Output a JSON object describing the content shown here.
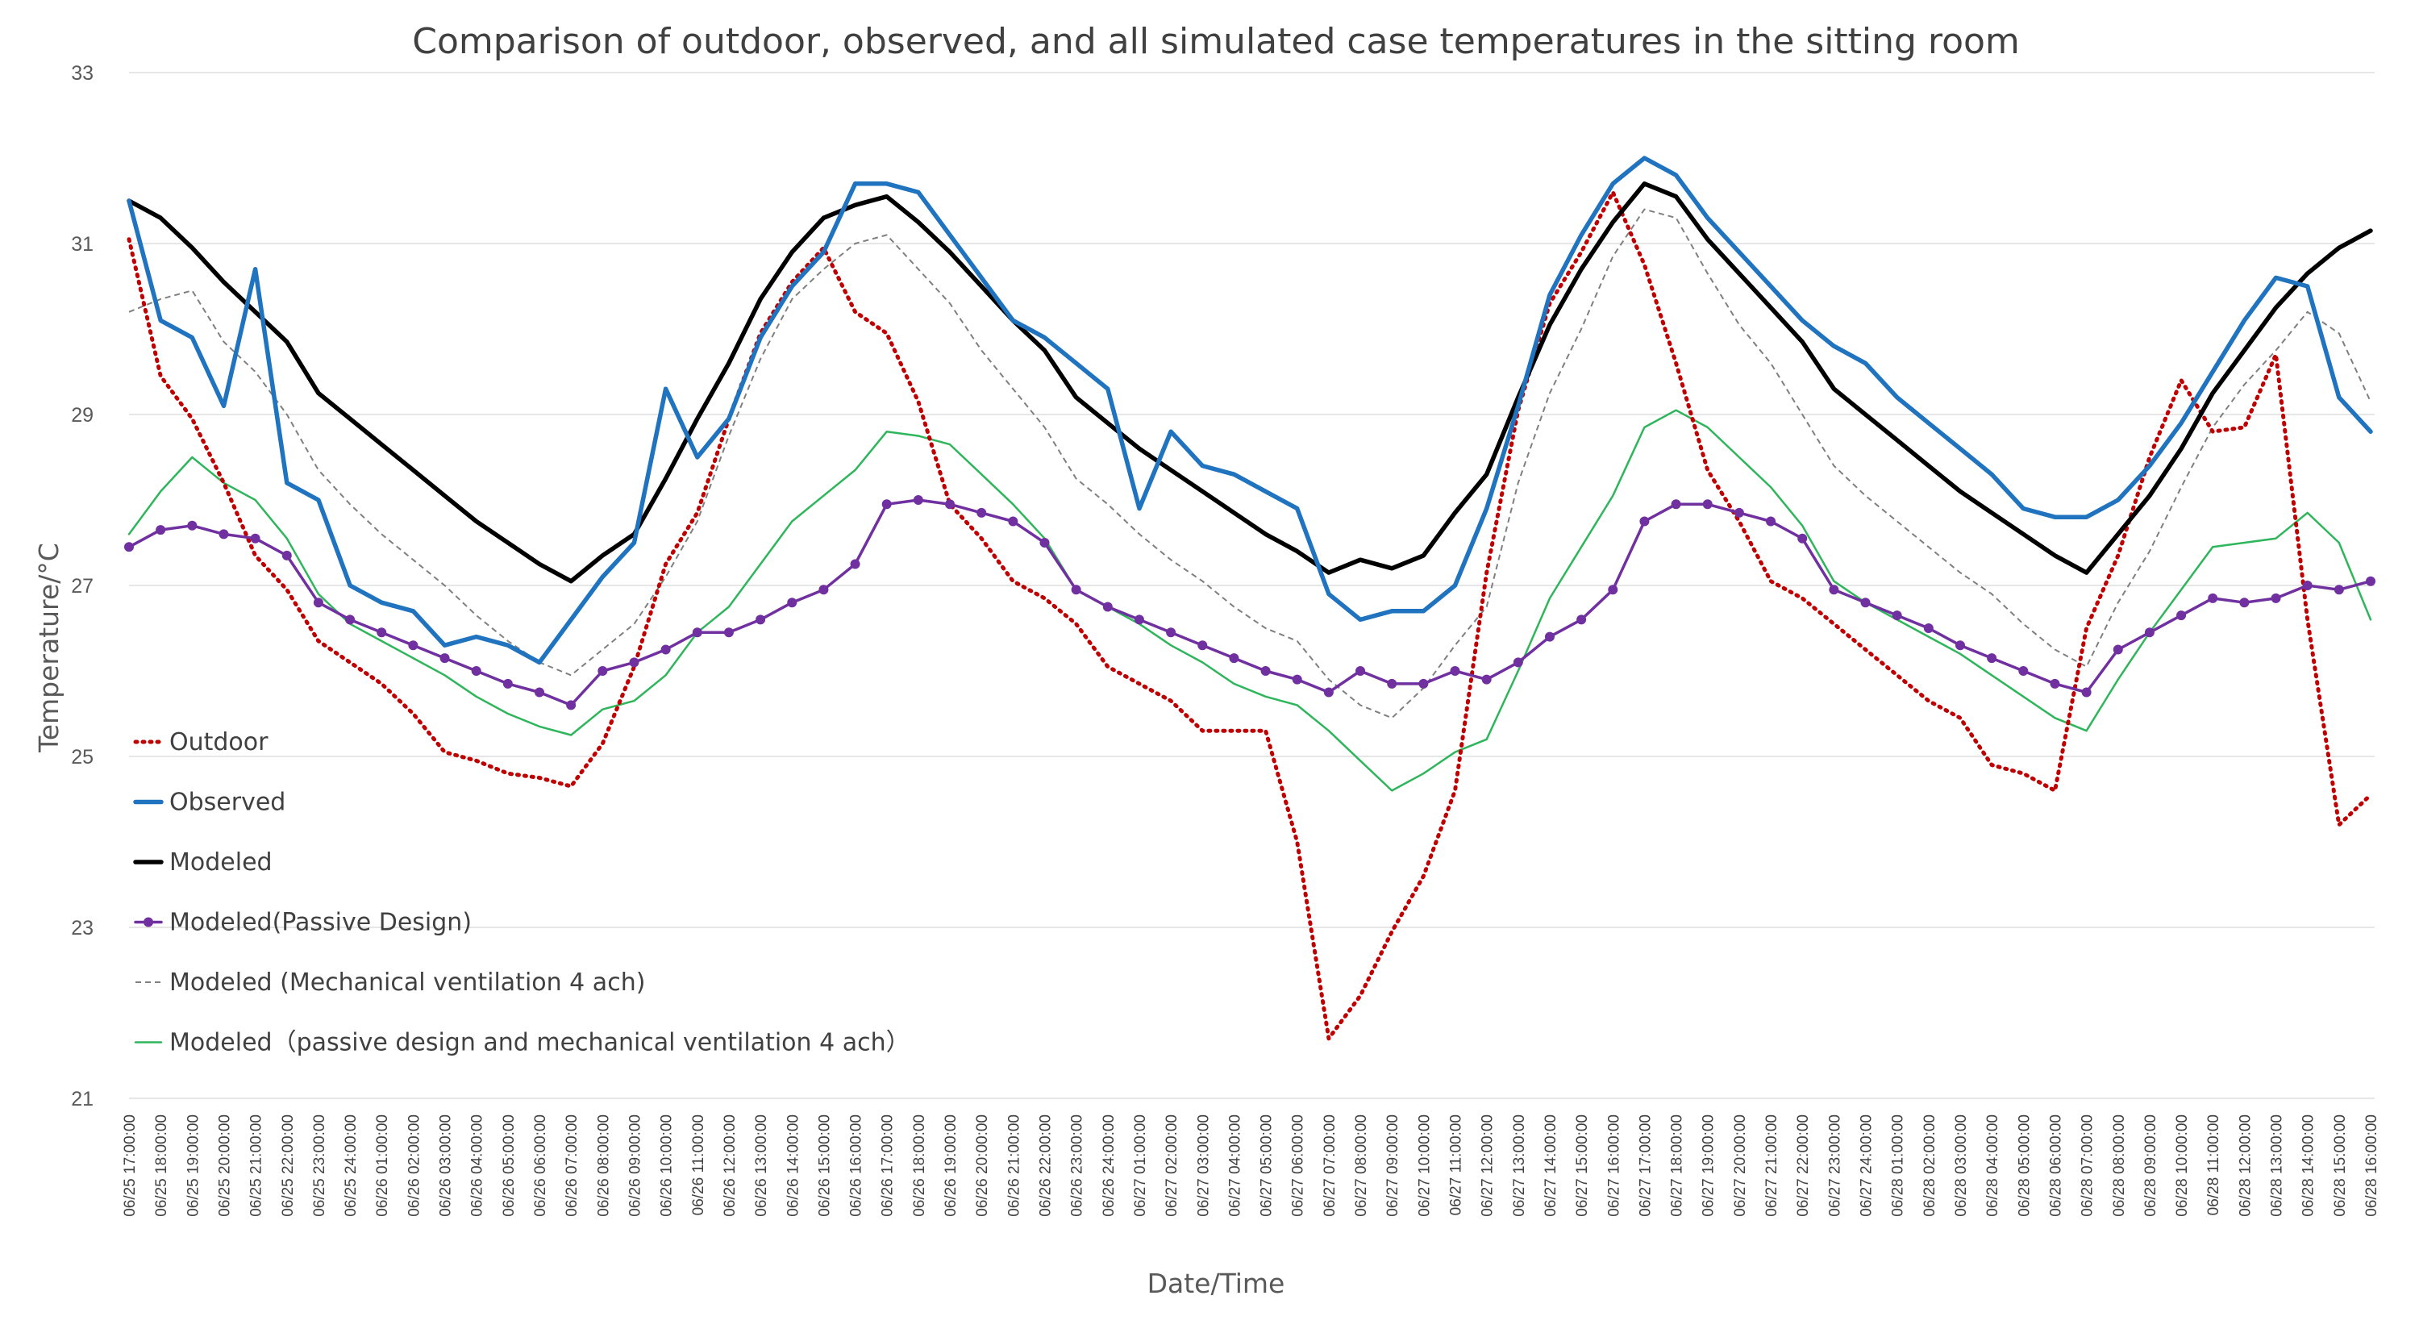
{
  "chart_data": {
    "type": "line",
    "title": "Comparison of outdoor, observed, and all simulated case temperatures in the sitting  room",
    "xlabel": "Date/Time",
    "ylabel": "Temperature/°C",
    "ylim": [
      21,
      33
    ],
    "yticks": [
      21,
      23,
      25,
      27,
      29,
      31,
      33
    ],
    "grid": true,
    "legend_position": "left-bottom",
    "x": [
      "06/25 17:00:00",
      "06/25 18:00:00",
      "06/25 19:00:00",
      "06/25 20:00:00",
      "06/25 21:00:00",
      "06/25 22:00:00",
      "06/25 23:00:00",
      "06/25 24:00:00",
      "06/26 01:00:00",
      "06/26 02:00:00",
      "06/26 03:00:00",
      "06/26 04:00:00",
      "06/26 05:00:00",
      "06/26 06:00:00",
      "06/26 07:00:00",
      "06/26 08:00:00",
      "06/26 09:00:00",
      "06/26 10:00:00",
      "06/26 11:00:00",
      "06/26 12:00:00",
      "06/26 13:00:00",
      "06/26 14:00:00",
      "06/26 15:00:00",
      "06/26 16:00:00",
      "06/26 17:00:00",
      "06/26 18:00:00",
      "06/26 19:00:00",
      "06/26 20:00:00",
      "06/26 21:00:00",
      "06/26 22:00:00",
      "06/26 23:00:00",
      "06/26 24:00:00",
      "06/27 01:00:00",
      "06/27 02:00:00",
      "06/27 03:00:00",
      "06/27 04:00:00",
      "06/27 05:00:00",
      "06/27 06:00:00",
      "06/27 07:00:00",
      "06/27 08:00:00",
      "06/27 09:00:00",
      "06/27 10:00:00",
      "06/27 11:00:00",
      "06/27 12:00:00",
      "06/27 13:00:00",
      "06/27 14:00:00",
      "06/27 15:00:00",
      "06/27 16:00:00",
      "06/27 17:00:00",
      "06/27 18:00:00",
      "06/27 19:00:00",
      "06/27 20:00:00",
      "06/27 21:00:00",
      "06/27 22:00:00",
      "06/27 23:00:00",
      "06/27 24:00:00",
      "06/28 01:00:00",
      "06/28 02:00:00",
      "06/28 03:00:00",
      "06/28 04:00:00",
      "06/28 05:00:00",
      "06/28 06:00:00",
      "06/28 07:00:00",
      "06/28 08:00:00",
      "06/28 09:00:00",
      "06/28 10:00:00",
      "06/28 11:00:00",
      "06/28 12:00:00",
      "06/28 13:00:00",
      "06/28 14:00:00",
      "06/28 15:00:00",
      "06/28 16:00:00"
    ],
    "series": [
      {
        "name": "Outdoor",
        "color": "#c00000",
        "style": "dotted",
        "values": [
          31.05,
          29.45,
          28.95,
          28.2,
          27.35,
          26.95,
          26.35,
          26.1,
          25.85,
          25.5,
          25.05,
          24.95,
          24.8,
          24.75,
          24.65,
          25.15,
          26.05,
          27.25,
          27.85,
          28.95,
          29.95,
          30.55,
          30.95,
          30.2,
          29.95,
          29.15,
          27.95,
          27.55,
          27.05,
          26.85,
          26.55,
          26.05,
          25.85,
          25.65,
          25.3,
          25.3,
          25.3,
          24.0,
          21.7,
          22.2,
          22.95,
          23.6,
          24.6,
          27.15,
          29.05,
          30.3,
          30.9,
          31.6,
          30.75,
          29.6,
          28.35,
          27.75,
          27.05,
          26.85,
          26.55,
          26.25,
          25.95,
          25.65,
          25.45,
          24.9,
          24.8,
          24.6,
          26.5,
          27.35,
          28.5,
          29.4,
          28.8,
          28.85,
          29.7,
          26.6,
          24.2,
          24.55
        ]
      },
      {
        "name": "Observed",
        "color": "#1f73bf",
        "style": "solid-thick",
        "values": [
          31.5,
          30.1,
          29.9,
          29.1,
          30.7,
          28.2,
          28.0,
          27.0,
          26.8,
          26.7,
          26.3,
          26.4,
          26.3,
          26.1,
          26.6,
          27.1,
          27.5,
          29.3,
          28.5,
          28.95,
          29.9,
          30.5,
          30.9,
          31.7,
          31.7,
          31.6,
          31.1,
          30.6,
          30.1,
          29.9,
          29.6,
          29.3,
          27.9,
          28.8,
          28.4,
          28.3,
          28.1,
          27.9,
          26.9,
          26.6,
          26.7,
          26.7,
          27.0,
          27.9,
          29.1,
          30.4,
          31.1,
          31.7,
          32.0,
          31.8,
          31.3,
          30.9,
          30.5,
          30.1,
          29.8,
          29.6,
          29.2,
          28.9,
          28.6,
          28.3,
          27.9,
          27.8,
          27.8,
          28.0,
          28.4,
          28.9,
          29.5,
          30.1,
          30.6,
          30.5,
          29.2,
          28.8
        ]
      },
      {
        "name": "Modeled",
        "color": "#000000",
        "style": "solid-thick",
        "values": [
          31.5,
          31.3,
          30.95,
          30.55,
          30.2,
          29.85,
          29.25,
          28.95,
          28.65,
          28.35,
          28.05,
          27.75,
          27.5,
          27.25,
          27.05,
          27.35,
          27.6,
          28.25,
          28.95,
          29.6,
          30.35,
          30.9,
          31.3,
          31.45,
          31.55,
          31.25,
          30.9,
          30.5,
          30.1,
          29.75,
          29.2,
          28.9,
          28.6,
          28.35,
          28.1,
          27.85,
          27.6,
          27.4,
          27.15,
          27.3,
          27.2,
          27.35,
          27.85,
          28.3,
          29.2,
          30.05,
          30.7,
          31.25,
          31.7,
          31.55,
          31.05,
          30.65,
          30.25,
          29.85,
          29.3,
          29.0,
          28.7,
          28.4,
          28.1,
          27.85,
          27.6,
          27.35,
          27.15,
          27.6,
          28.05,
          28.6,
          29.25,
          29.75,
          30.25,
          30.65,
          30.95,
          31.15
        ]
      },
      {
        "name": "Modeled(Passive Design)",
        "color": "#7030a0",
        "style": "solid-markers",
        "values": [
          27.45,
          27.65,
          27.7,
          27.6,
          27.55,
          27.35,
          26.8,
          26.6,
          26.45,
          26.3,
          26.15,
          26.0,
          25.85,
          25.75,
          25.6,
          26.0,
          26.1,
          26.25,
          26.45,
          26.45,
          26.6,
          26.8,
          26.95,
          27.25,
          27.95,
          28.0,
          27.95,
          27.85,
          27.75,
          27.5,
          26.95,
          26.75,
          26.6,
          26.45,
          26.3,
          26.15,
          26.0,
          25.9,
          25.75,
          26.0,
          25.85,
          25.85,
          26.0,
          25.9,
          26.1,
          26.4,
          26.6,
          26.95,
          27.75,
          27.95,
          27.95,
          27.85,
          27.75,
          27.55,
          26.95,
          26.8,
          26.65,
          26.5,
          26.3,
          26.15,
          26.0,
          25.85,
          25.75,
          26.25,
          26.45,
          26.65,
          26.85,
          26.8,
          26.85,
          27.0,
          26.95,
          27.05
        ]
      },
      {
        "name": "Modeled (Mechanical ventilation 4 ach)",
        "color": "#7f7f7f",
        "style": "dashed-thin",
        "values": [
          30.2,
          30.35,
          30.45,
          29.85,
          29.5,
          29.0,
          28.35,
          27.95,
          27.6,
          27.3,
          27.0,
          26.65,
          26.35,
          26.1,
          25.95,
          26.25,
          26.55,
          27.1,
          27.75,
          28.75,
          29.65,
          30.35,
          30.7,
          31.0,
          31.1,
          30.7,
          30.3,
          29.75,
          29.3,
          28.85,
          28.25,
          27.95,
          27.6,
          27.3,
          27.05,
          26.75,
          26.5,
          26.35,
          25.9,
          25.6,
          25.45,
          25.8,
          26.3,
          26.75,
          28.2,
          29.25,
          30.0,
          30.85,
          31.4,
          31.3,
          30.65,
          30.05,
          29.6,
          29.0,
          28.4,
          28.05,
          27.75,
          27.45,
          27.15,
          26.9,
          26.55,
          26.25,
          26.05,
          26.8,
          27.4,
          28.15,
          28.85,
          29.35,
          29.75,
          30.2,
          29.95,
          29.15
        ]
      },
      {
        "name": "Modeled（passive design and mechanical ventilation 4 ach）",
        "color": "#2fb55b",
        "style": "solid-thin",
        "values": [
          27.6,
          28.1,
          28.5,
          28.2,
          28.0,
          27.55,
          26.9,
          26.55,
          26.35,
          26.15,
          25.95,
          25.7,
          25.5,
          25.35,
          25.25,
          25.55,
          25.65,
          25.95,
          26.45,
          26.75,
          27.25,
          27.75,
          28.05,
          28.35,
          28.8,
          28.75,
          28.65,
          28.3,
          27.95,
          27.55,
          26.95,
          26.75,
          26.55,
          26.3,
          26.1,
          25.85,
          25.7,
          25.6,
          25.3,
          24.95,
          24.6,
          24.8,
          25.05,
          25.2,
          26.0,
          26.85,
          27.45,
          28.05,
          28.85,
          29.05,
          28.85,
          28.5,
          28.15,
          27.7,
          27.05,
          26.8,
          26.6,
          26.4,
          26.2,
          25.95,
          25.7,
          25.45,
          25.3,
          25.9,
          26.45,
          26.95,
          27.45,
          27.5,
          27.55,
          27.85,
          27.5,
          26.6
        ]
      }
    ]
  }
}
